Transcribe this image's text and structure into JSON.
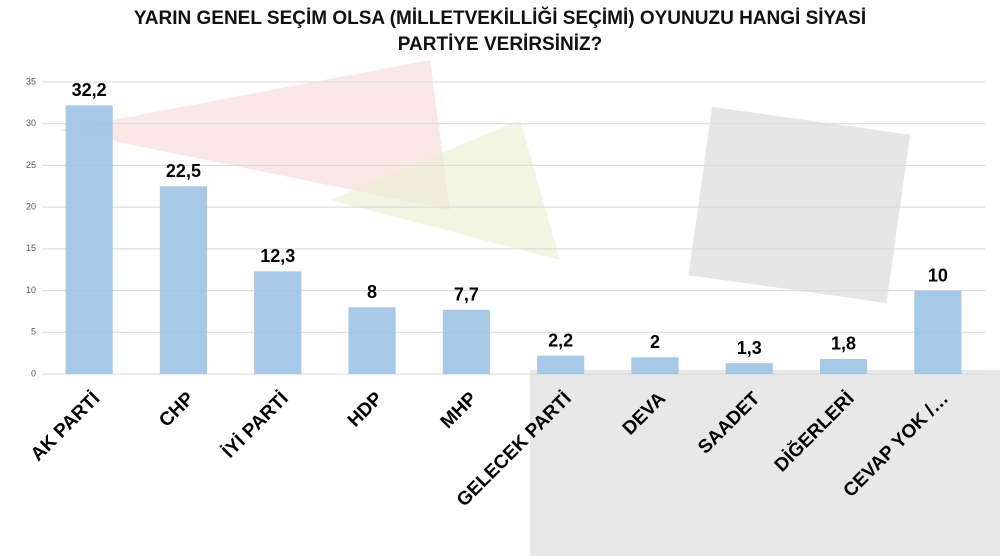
{
  "chart_data": {
    "type": "bar",
    "title": "YARIN GENEL SEÇİM OLSA (MİLLETVEKİLLİĞİ SEÇİMİ) OYUNUZU HANGİ SİYASİ PARTİYE VERİRSİNİZ?",
    "categories": [
      "AK PARTİ",
      "CHP",
      "İYİ PARTİ",
      "HDP",
      "MHP",
      "GELECEK PARTİ",
      "DEVA",
      "SAADET",
      "DİĞERLERİ",
      "CEVAP YOK /…"
    ],
    "values": [
      32.2,
      22.5,
      12.3,
      8,
      7.7,
      2.2,
      2,
      1.3,
      1.8,
      10
    ],
    "value_labels": [
      "32,2",
      "22,5",
      "12,3",
      "8",
      "7,7",
      "2,2",
      "2",
      "1,3",
      "1,8",
      "10"
    ],
    "color": "#9dc3e6",
    "ylim": [
      0,
      35
    ],
    "yticks": [
      0,
      5,
      10,
      15,
      20,
      25,
      30,
      35
    ],
    "grid": true
  }
}
